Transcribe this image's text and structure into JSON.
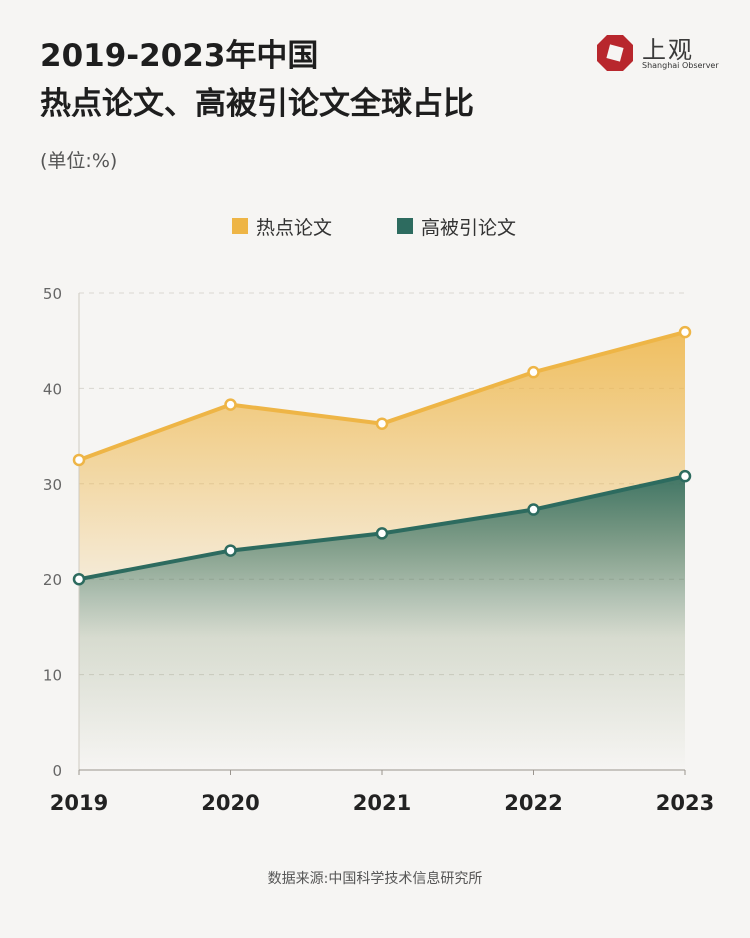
{
  "title": {
    "line1": "2019-2023年中国",
    "line2": "热点论文、高被引论文全球占比"
  },
  "unit": "(单位:%)",
  "logo": {
    "name_cn": "上观",
    "name_en": "Shanghai Observer",
    "icon": "shanghai-observer-logo-icon",
    "color": "#b8272d"
  },
  "source": "数据来源:中国科学技术信息研究所",
  "chart_data": {
    "type": "area",
    "categories": [
      "2019",
      "2020",
      "2021",
      "2022",
      "2023"
    ],
    "series": [
      {
        "name": "热点论文",
        "values": [
          32.5,
          38.3,
          36.3,
          41.7,
          45.9
        ],
        "color": "#eeb546"
      },
      {
        "name": "高被引论文",
        "values": [
          20.0,
          23.0,
          24.8,
          27.3,
          30.8
        ],
        "color": "#2d6b5f"
      }
    ],
    "yticks": [
      0,
      10,
      20,
      30,
      40,
      50
    ],
    "ylim": [
      0,
      50
    ],
    "grid": true,
    "legend_position": "top-center",
    "xlabel": "",
    "ylabel": ""
  }
}
